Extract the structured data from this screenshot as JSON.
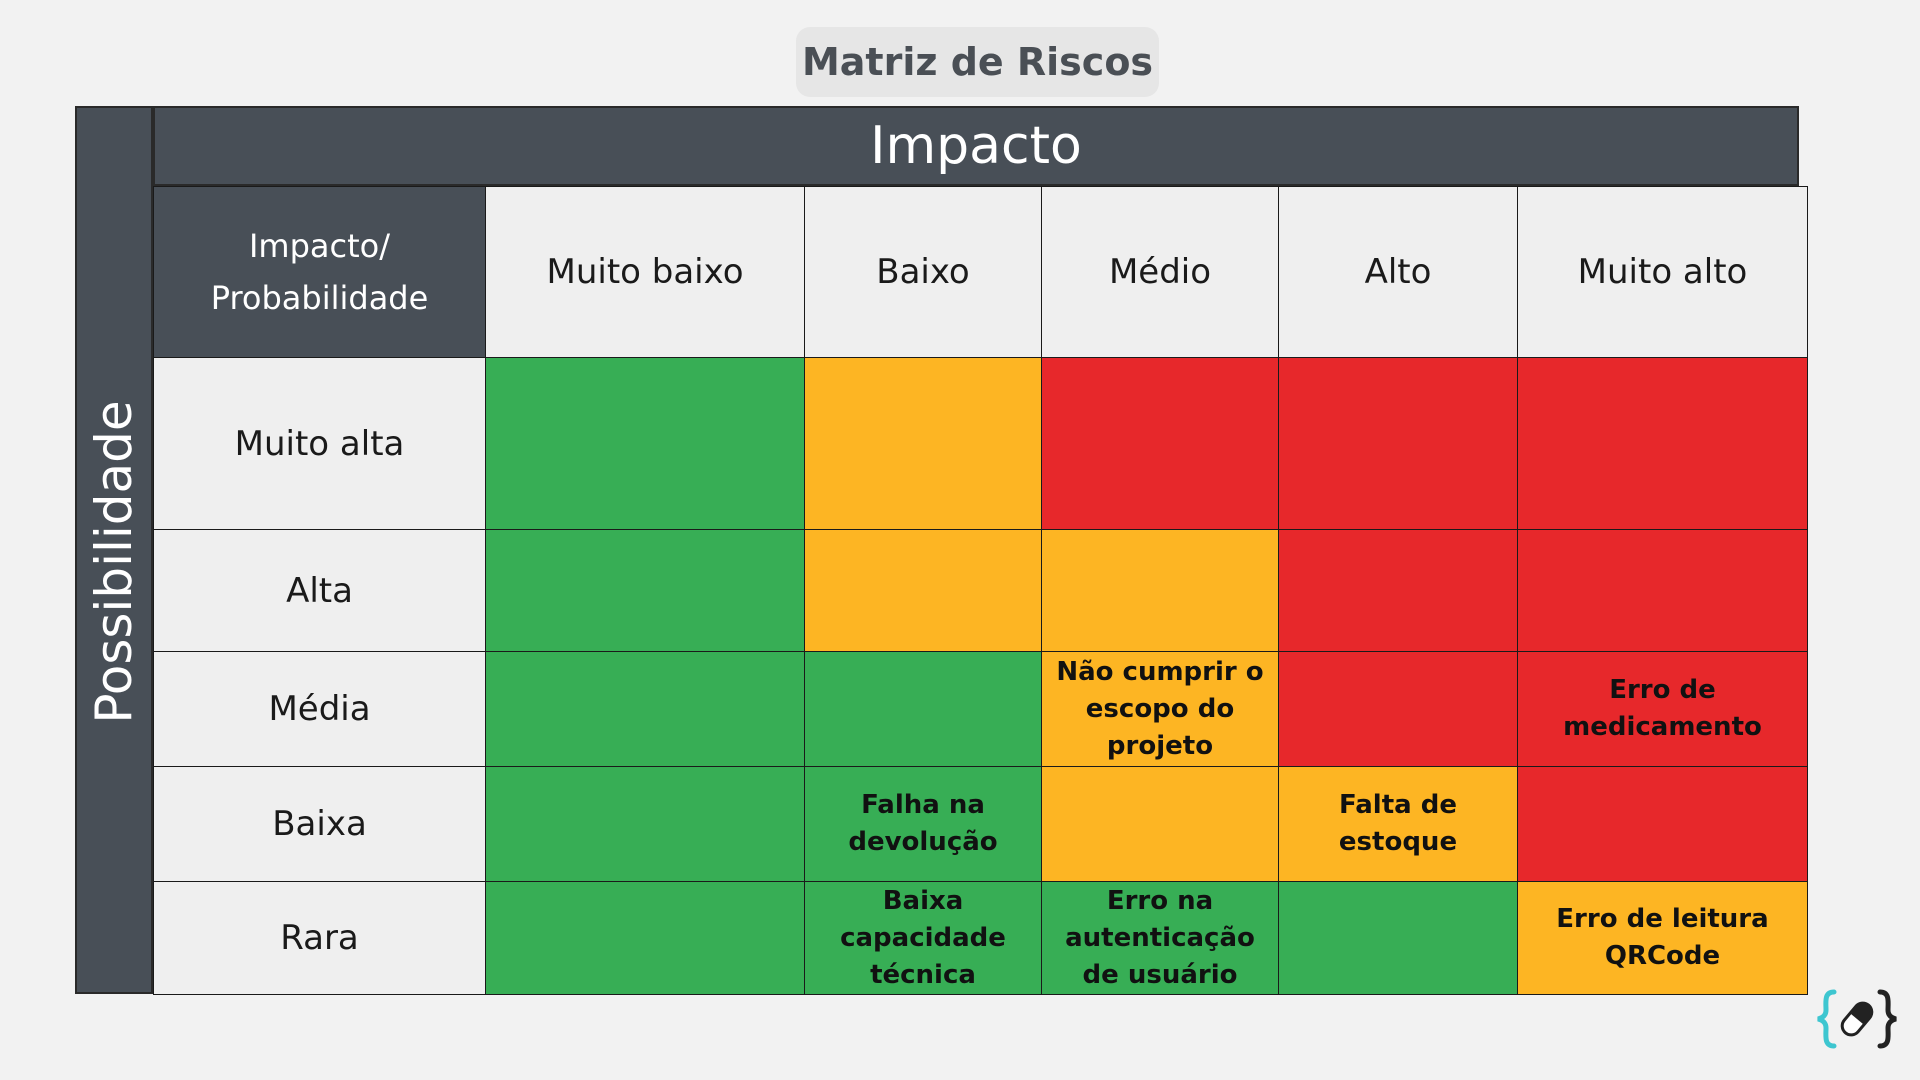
{
  "title": "Matriz de Riscos",
  "axis_top": "Impacto",
  "axis_side": "Possibilidade",
  "corner_label": [
    "Impacto/",
    "Probabilidade"
  ],
  "impact_levels": [
    "Muito baixo",
    "Baixo",
    "Médio",
    "Alto",
    "Muito alto"
  ],
  "colors": {
    "green": "#37ae55",
    "orange": "#fdb523",
    "red": "#e7282b",
    "header_dark": "#484f57"
  },
  "rows": [
    {
      "label": "Muito alta",
      "cells": [
        {
          "color": "green",
          "text": ""
        },
        {
          "color": "orange",
          "text": ""
        },
        {
          "color": "red",
          "text": ""
        },
        {
          "color": "red",
          "text": ""
        },
        {
          "color": "red",
          "text": ""
        }
      ]
    },
    {
      "label": "Alta",
      "cells": [
        {
          "color": "green",
          "text": ""
        },
        {
          "color": "orange",
          "text": ""
        },
        {
          "color": "orange",
          "text": ""
        },
        {
          "color": "red",
          "text": ""
        },
        {
          "color": "red",
          "text": ""
        }
      ]
    },
    {
      "label": "Média",
      "cells": [
        {
          "color": "green",
          "text": ""
        },
        {
          "color": "green",
          "text": ""
        },
        {
          "color": "orange",
          "text": "Não cumprir o escopo do projeto"
        },
        {
          "color": "red",
          "text": ""
        },
        {
          "color": "red",
          "text": "Erro de medicamento"
        }
      ]
    },
    {
      "label": "Baixa",
      "cells": [
        {
          "color": "green",
          "text": ""
        },
        {
          "color": "green",
          "text": "Falha na devolução"
        },
        {
          "color": "orange",
          "text": ""
        },
        {
          "color": "orange",
          "text": "Falta de estoque"
        },
        {
          "color": "red",
          "text": ""
        }
      ]
    },
    {
      "label": "Rara",
      "cells": [
        {
          "color": "green",
          "text": ""
        },
        {
          "color": "green",
          "text": "Baixa capacidade técnica"
        },
        {
          "color": "green",
          "text": "Erro na autenticação de usuário"
        },
        {
          "color": "green",
          "text": ""
        },
        {
          "color": "orange",
          "text": "Erro de leitura QRCode"
        }
      ]
    }
  ],
  "logo_icon": "pill-braces-logo"
}
